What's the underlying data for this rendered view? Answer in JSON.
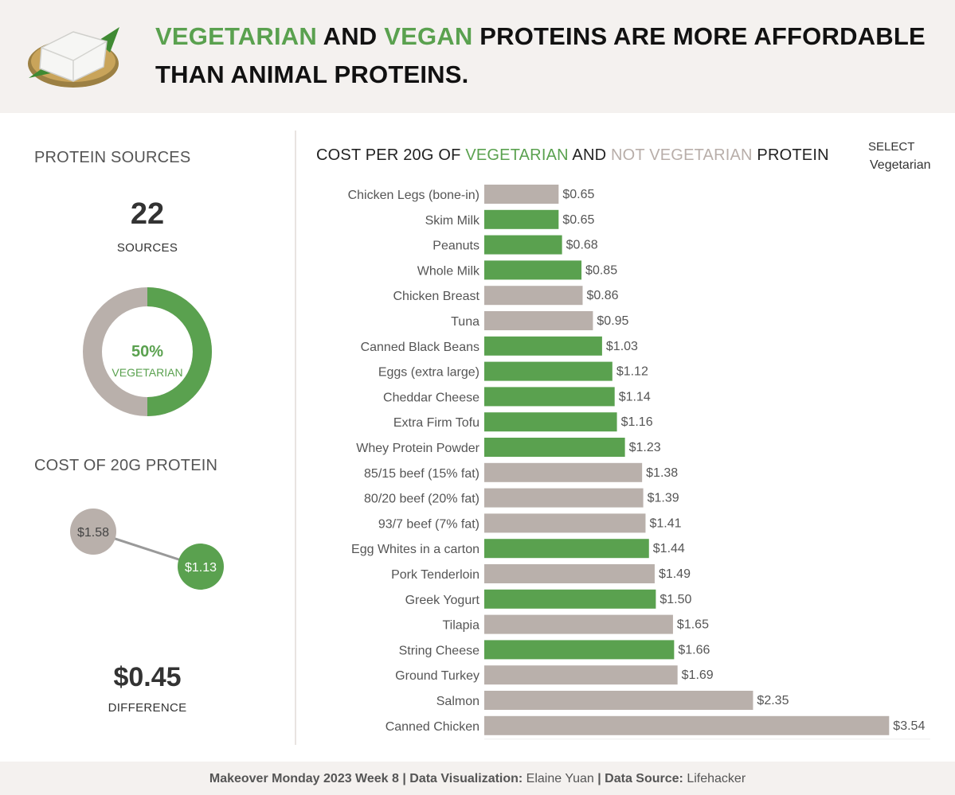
{
  "header": {
    "title_parts": [
      "VEGETARIAN",
      " AND ",
      "VEGAN",
      " PROTEINS ARE MORE AFFORDABLE THAN ANIMAL PROTEINS."
    ],
    "logo_icon": "tofu-block-icon"
  },
  "left_panel": {
    "sources_title": "PROTEIN SOURCES",
    "sources_count": "22",
    "sources_label": "SOURCES",
    "donut_percent": "50%",
    "donut_label": "VEGETARIAN",
    "donut_fraction": 0.5,
    "cost_title": "COST OF 20G PROTEIN",
    "nonveg_cost": "$1.58",
    "veg_cost": "$1.13",
    "difference_value": "$0.45",
    "difference_label": "DIFFERENCE"
  },
  "select": {
    "label": "SELECT",
    "value": "Vegetarian"
  },
  "colors": {
    "vegetarian": "#5aa14f",
    "not_vegetarian": "#b9b0ab",
    "header_bg": "#f4f1ef"
  },
  "chart_data": {
    "type": "bar",
    "orientation": "horizontal",
    "title_parts": [
      "COST PER 20G OF ",
      "VEGETARIAN",
      " AND ",
      "NOT VEGETARIAN",
      " PROTEIN"
    ],
    "categories": [
      "Chicken Legs (bone-in)",
      "Skim Milk",
      "Peanuts",
      "Whole Milk",
      "Chicken Breast",
      "Tuna",
      "Canned Black Beans",
      "Eggs (extra large)",
      "Cheddar Cheese",
      "Extra Firm Tofu",
      "Whey Protein Powder",
      "85/15 beef (15% fat)",
      "80/20 beef (20% fat)",
      "93/7 beef (7% fat)",
      "Egg Whites in a carton",
      "Pork Tenderloin",
      "Greek Yogurt",
      "Tilapia",
      "String Cheese",
      "Ground Turkey",
      "Salmon",
      "Canned Chicken"
    ],
    "values": [
      0.65,
      0.65,
      0.68,
      0.85,
      0.86,
      0.95,
      1.03,
      1.12,
      1.14,
      1.16,
      1.23,
      1.38,
      1.39,
      1.41,
      1.44,
      1.49,
      1.5,
      1.65,
      1.66,
      1.69,
      2.35,
      3.54
    ],
    "labels": [
      "$0.65",
      "$0.65",
      "$0.68",
      "$0.85",
      "$0.86",
      "$0.95",
      "$1.03",
      "$1.12",
      "$1.14",
      "$1.16",
      "$1.23",
      "$1.38",
      "$1.39",
      "$1.41",
      "$1.44",
      "$1.49",
      "$1.50",
      "$1.65",
      "$1.66",
      "$1.69",
      "$2.35",
      "$3.54"
    ],
    "vegetarian": [
      false,
      true,
      true,
      true,
      false,
      false,
      true,
      true,
      true,
      true,
      true,
      false,
      false,
      false,
      true,
      false,
      true,
      false,
      true,
      false,
      false,
      false
    ],
    "xlim": [
      0,
      3.9
    ]
  },
  "footer": {
    "part1_bold": "Makeover Monday 2023 Week 8 | Data Visualization:",
    "part1_text": " Elaine Yuan ",
    "part2_bold": "| Data Source:",
    "part2_text": " Lifehacker"
  }
}
